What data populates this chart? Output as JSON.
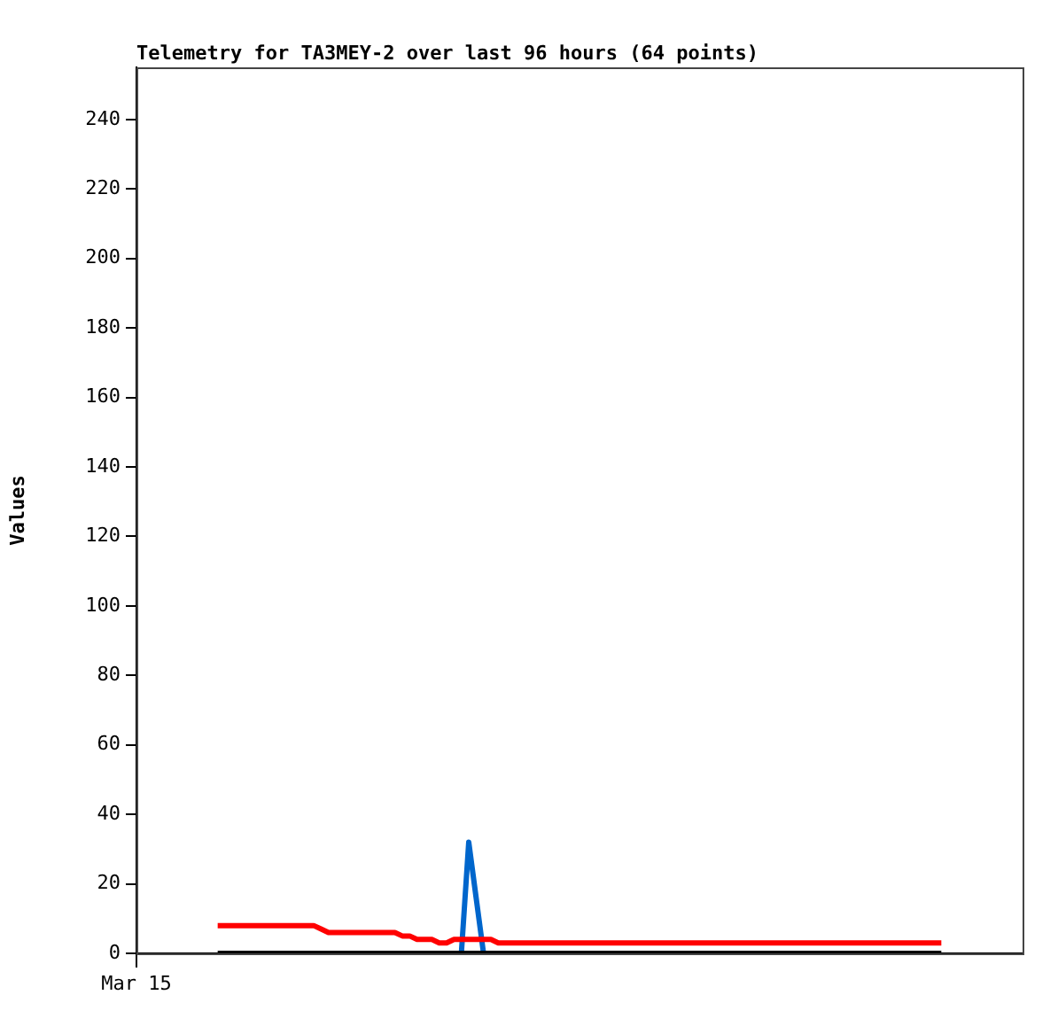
{
  "chart_data": {
    "type": "line",
    "title": "Telemetry for TA3MEY-2 over last 96 hours (64 points)",
    "ylabel": "Values",
    "categories": [
      "Mar 15",
      null,
      null,
      null,
      null,
      null,
      null,
      null,
      null,
      null,
      null,
      null,
      null,
      null,
      null,
      null,
      null,
      null,
      null,
      null,
      null,
      null,
      null,
      null,
      null,
      null,
      null,
      null,
      null,
      null,
      null,
      null,
      null,
      null,
      null,
      null,
      null,
      null,
      null,
      null,
      null,
      null,
      null,
      null,
      null,
      null,
      null,
      null,
      null,
      null,
      null,
      null,
      null,
      null,
      null,
      null,
      null,
      null,
      null,
      null,
      null,
      null,
      null,
      null,
      null,
      null,
      null,
      null,
      null,
      null,
      null,
      null,
      null,
      null,
      null,
      null,
      null,
      null,
      null,
      null,
      null,
      null,
      null,
      null,
      null,
      null,
      null,
      null,
      null,
      null,
      null,
      null,
      null,
      null,
      null,
      null,
      null,
      null,
      null,
      null,
      null,
      null,
      null,
      null,
      null,
      null,
      null,
      null,
      null,
      null,
      null,
      null,
      null,
      null,
      null,
      null,
      null,
      null,
      null,
      null,
      null
    ],
    "ylim": [
      0,
      255
    ],
    "yticks": [
      0,
      20,
      40,
      60,
      80,
      100,
      120,
      140,
      160,
      180,
      200,
      220,
      240
    ],
    "grid": false,
    "legend": false,
    "marker": "none",
    "line_style": "solid",
    "series": [
      {
        "color": "#ff0000",
        "values": [
          null,
          null,
          null,
          null,
          null,
          null,
          null,
          null,
          null,
          null,
          null,
          8,
          8,
          8,
          8,
          8,
          8,
          8,
          8,
          8,
          8,
          8,
          8,
          8,
          8,
          7,
          6,
          6,
          6,
          6,
          6,
          6,
          6,
          6,
          6,
          6,
          5,
          5,
          4,
          4,
          4,
          3,
          3,
          4,
          4,
          4,
          4,
          4,
          4,
          3,
          3,
          3,
          3,
          3,
          3,
          3,
          3,
          3,
          3,
          3,
          3,
          3,
          3,
          3,
          3,
          3,
          3,
          3,
          3,
          3,
          3,
          3,
          3,
          3,
          3,
          3,
          3,
          3,
          3,
          3,
          3,
          3,
          3,
          3,
          3,
          3,
          3,
          3,
          3,
          3,
          3,
          3,
          3,
          3,
          3,
          3,
          3,
          3,
          3,
          3,
          3,
          3,
          3,
          3,
          3,
          3,
          3,
          3,
          3,
          3,
          null,
          null,
          null,
          null,
          null,
          null,
          null,
          null,
          null,
          null,
          null
        ]
      },
      {
        "color": "#000000",
        "values": [
          null,
          null,
          null,
          null,
          null,
          null,
          null,
          null,
          null,
          null,
          null,
          0,
          0,
          0,
          0,
          0,
          0,
          0,
          0,
          0,
          0,
          0,
          0,
          0,
          0,
          0,
          0,
          0,
          0,
          0,
          0,
          0,
          0,
          0,
          0,
          0,
          0,
          0,
          0,
          0,
          0,
          0,
          0,
          0,
          0,
          0,
          0,
          0,
          0,
          0,
          0,
          0,
          0,
          0,
          0,
          0,
          0,
          0,
          0,
          0,
          0,
          0,
          0,
          0,
          0,
          0,
          0,
          0,
          0,
          0,
          0,
          0,
          0,
          0,
          0,
          0,
          0,
          0,
          0,
          0,
          0,
          0,
          0,
          0,
          0,
          0,
          0,
          0,
          0,
          0,
          0,
          0,
          0,
          0,
          0,
          0,
          0,
          0,
          0,
          0,
          0,
          0,
          0,
          0,
          0,
          0,
          0,
          0,
          0,
          0,
          null,
          null,
          null,
          null,
          null,
          null,
          null,
          null,
          null,
          null,
          null
        ]
      },
      {
        "color": "#0066cc",
        "values": [
          null,
          null,
          null,
          null,
          null,
          null,
          null,
          null,
          null,
          null,
          null,
          null,
          null,
          null,
          null,
          null,
          null,
          null,
          null,
          null,
          null,
          null,
          null,
          null,
          null,
          null,
          null,
          null,
          null,
          null,
          null,
          null,
          null,
          null,
          null,
          null,
          null,
          null,
          null,
          null,
          null,
          null,
          null,
          null,
          0,
          32,
          16,
          0,
          null,
          null,
          null,
          null,
          null,
          null,
          null,
          null,
          null,
          null,
          null,
          null,
          null,
          null,
          null,
          null,
          null,
          null,
          null,
          null,
          null,
          null,
          null,
          null,
          null,
          null,
          null,
          null,
          null,
          null,
          null,
          null,
          null,
          null,
          null,
          null,
          null,
          null,
          null,
          null,
          null,
          null,
          null,
          null,
          null,
          null,
          null,
          null,
          null,
          null,
          null,
          null,
          null,
          null,
          null,
          null,
          null,
          null,
          null,
          null,
          null,
          null,
          null,
          null,
          null,
          null,
          null,
          null,
          null,
          null,
          null,
          null,
          null
        ]
      }
    ]
  }
}
